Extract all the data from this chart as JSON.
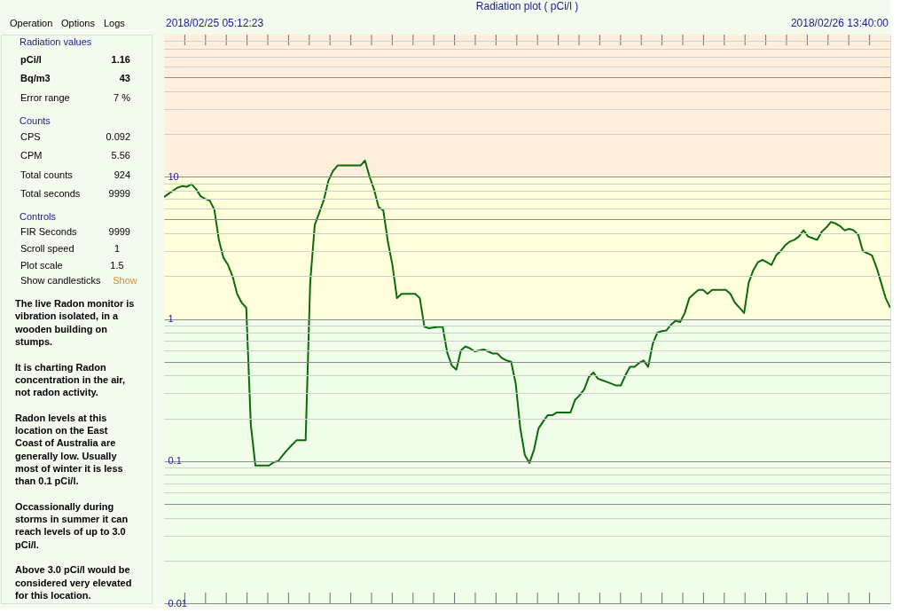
{
  "chart_data": [
    {
      "type": "line",
      "title": "Radiation plot ( pCi/l )",
      "annotations": [
        "2018/02/25 05:12:23",
        "2018/02/26 13:40:00"
      ],
      "categories": [
        null,
        null,
        null,
        null,
        null,
        null,
        null,
        null,
        null,
        null,
        null,
        null,
        null,
        null,
        null,
        null,
        null,
        null,
        null,
        null,
        null,
        null,
        null,
        null,
        null,
        null,
        null,
        null,
        null,
        null,
        null,
        null,
        null,
        null,
        null,
        null,
        null,
        null,
        null,
        null,
        null,
        null,
        null,
        null,
        null,
        null,
        null,
        null,
        null,
        null,
        null,
        null,
        null,
        null,
        null,
        null,
        null,
        null,
        null,
        null,
        null,
        null,
        null,
        null,
        null,
        null,
        null,
        null,
        null,
        null,
        null,
        null,
        null,
        null,
        null,
        null,
        null,
        null,
        null,
        null,
        null,
        null,
        null,
        null,
        null,
        null,
        null,
        null,
        null,
        null,
        null,
        null,
        null,
        null,
        null,
        null,
        null,
        null,
        null,
        null,
        null,
        null,
        null,
        null,
        null,
        null,
        null,
        null,
        null,
        null,
        null,
        null,
        null,
        null,
        null,
        null,
        null,
        null,
        null,
        null,
        null,
        null,
        null,
        null,
        null,
        null,
        null,
        null,
        null,
        null,
        null,
        null,
        null,
        null,
        null,
        null,
        null,
        null,
        null,
        null,
        null,
        null,
        null,
        null,
        null,
        null,
        null,
        null,
        null,
        null,
        null,
        null,
        null,
        null,
        null,
        null,
        null,
        null,
        null,
        null
      ],
      "series": [
        {
          "color": "#0a6b0a",
          "values": [
            7.2,
            7.6,
            8.0,
            8.4,
            8.6,
            8.5,
            8.9,
            8.2,
            7.3,
            7.0,
            6.8,
            5.9,
            3.6,
            2.7,
            2.4,
            2.0,
            1.5,
            1.3,
            1.2,
            0.18,
            0.093,
            0.093,
            0.093,
            0.093,
            0.098,
            0.1,
            0.11,
            0.12,
            0.13,
            0.14,
            0.14,
            0.14,
            1.8,
            4.6,
            5.6,
            6.9,
            9.4,
            11.0,
            12.0,
            12.0,
            12.0,
            12.0,
            12.0,
            12.0,
            13.0,
            10.0,
            8.1,
            6.1,
            5.8,
            3.5,
            2.4,
            1.4,
            1.5,
            1.5,
            1.5,
            1.5,
            1.4,
            0.88,
            0.86,
            0.87,
            0.88,
            0.88,
            0.58,
            0.47,
            0.44,
            0.6,
            0.64,
            0.62,
            0.59,
            0.6,
            0.61,
            0.59,
            0.57,
            0.57,
            0.53,
            0.51,
            0.5,
            0.35,
            0.17,
            0.11,
            0.097,
            0.12,
            0.17,
            0.19,
            0.21,
            0.21,
            0.22,
            0.22,
            0.22,
            0.22,
            0.27,
            0.29,
            0.32,
            0.39,
            0.42,
            0.38,
            0.37,
            0.36,
            0.35,
            0.34,
            0.34,
            0.4,
            0.46,
            0.46,
            0.49,
            0.51,
            0.46,
            0.67,
            0.8,
            0.82,
            0.83,
            0.91,
            0.97,
            0.95,
            1.1,
            1.4,
            1.5,
            1.6,
            1.6,
            1.5,
            1.6,
            1.6,
            1.6,
            1.6,
            1.5,
            1.3,
            1.2,
            1.1,
            1.8,
            2.2,
            2.5,
            2.6,
            2.5,
            2.4,
            2.8,
            3.0,
            3.3,
            3.5,
            3.6,
            3.8,
            4.2,
            3.8,
            3.7,
            3.6,
            4.1,
            4.4,
            4.8,
            4.7,
            4.5,
            4.2,
            4.3,
            4.2,
            3.9,
            3.0,
            2.9,
            2.8,
            2.3,
            1.8,
            1.4,
            1.2
          ]
        }
      ],
      "log": true,
      "ylim": [
        0.01,
        100
      ],
      "yticks": [
        0.01,
        {
          "value": 0.02,
          "label": null
        },
        {
          "value": 0.03,
          "label": null
        },
        {
          "value": 0.04,
          "label": null
        },
        {
          "value": 0.05,
          "label": null
        },
        {
          "value": 0.06,
          "label": null
        },
        {
          "value": 0.07,
          "label": null
        },
        {
          "value": 0.08,
          "label": null
        },
        {
          "value": 0.09,
          "label": null
        },
        0.1,
        {
          "value": 0.2,
          "label": null
        },
        {
          "value": 0.3,
          "label": null
        },
        {
          "value": 0.4,
          "label": null
        },
        {
          "value": 0.5,
          "label": null
        },
        {
          "value": 0.6,
          "label": null
        },
        {
          "value": 0.7,
          "label": null
        },
        {
          "value": 0.8,
          "label": null
        },
        {
          "value": 0.9,
          "label": null
        },
        1,
        {
          "value": 2,
          "label": null
        },
        {
          "value": 3,
          "label": null
        },
        {
          "value": 4,
          "label": null
        },
        {
          "value": 5,
          "label": null
        },
        {
          "value": 6,
          "label": null
        },
        {
          "value": 7,
          "label": null
        },
        {
          "value": 8,
          "label": null
        },
        {
          "value": 9,
          "label": null
        },
        10,
        {
          "value": 20,
          "label": null
        },
        {
          "value": 30,
          "label": null
        },
        {
          "value": 40,
          "label": null
        },
        {
          "value": 50,
          "label": null
        },
        {
          "value": 60,
          "label": null
        },
        {
          "value": 70,
          "label": null
        },
        {
          "value": 80,
          "label": null
        },
        {
          "value": 90,
          "label": null
        }
      ],
      "grid": "y",
      "bands": [
        {
          "axis": "y",
          "from": 0.01,
          "to": 1,
          "color": "#effde9"
        },
        {
          "axis": "y",
          "from": 1,
          "to": 10,
          "color": "#ffffdc"
        },
        {
          "axis": "y",
          "from": 10,
          "to": 100,
          "color": "#fdefdc"
        }
      ],
      "tick_labels": "y",
      "marker": "none",
      "line_style": "solid"
    },
    {
      "type": "other",
      "annotations": [
        "Operation",
        "Options",
        "Logs",
        "Radiation values",
        "pCi/l",
        "1.16",
        "Bq/m3",
        "43",
        "Error range",
        "7 %",
        "Counts",
        "CPS",
        "0.092",
        "CPM",
        "5.56",
        "Total counts",
        "924",
        "Total seconds",
        "9999",
        "Controls",
        "FIR Seconds",
        "9999",
        "Scroll speed",
        "1",
        "Plot scale",
        "1.5",
        "Show candlesticks",
        "Show",
        "The live Radon monitor is vibration isolated, in a wooden building on stumps.",
        "It is charting Radon concentration in the air, not radon activity.",
        "Radon levels at this location on the East Coast of Australia are generally low. Usually most of winter it is less than 0.1 pCi/l.",
        "Occassionally during storms in summer it can reach levels of up to 3.0 pCi/l.",
        "Above 3.0 pCi/l would be considered very elevated for this location."
      ]
    }
  ]
}
